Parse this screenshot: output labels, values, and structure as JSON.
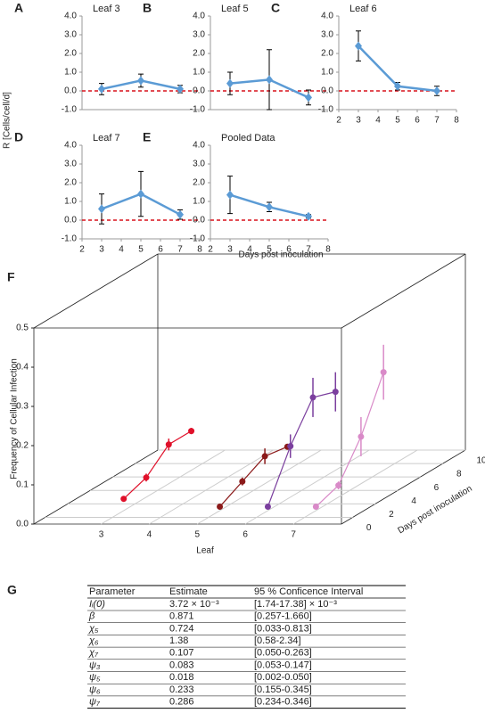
{
  "y_label": "R [Cells/cell/d]",
  "x_label": "Days post inoculation",
  "chart_data": [
    {
      "type": "line",
      "panel": "A",
      "title": "Leaf 3",
      "color": "#5b9bd5",
      "hline": 0,
      "hline_color": "#d9121b",
      "x": [
        3,
        5,
        7
      ],
      "values": [
        0.1,
        0.55,
        0.1
      ],
      "errors": [
        0.3,
        0.35,
        0.2
      ],
      "xlim": [
        2,
        8
      ],
      "ylim": [
        -1,
        4
      ],
      "yticks": [
        {
          "value": -1,
          "label": "-1.0"
        },
        {
          "value": 0,
          "label": "0.0"
        },
        {
          "value": 1,
          "label": "1.0"
        },
        {
          "value": 2,
          "label": "2.0"
        },
        {
          "value": 3,
          "label": "3.0"
        },
        {
          "value": 4,
          "label": "4.0"
        }
      ]
    },
    {
      "type": "line",
      "panel": "B",
      "title": "Leaf 5",
      "color": "#5b9bd5",
      "hline": 0,
      "hline_color": "#d9121b",
      "x": [
        3,
        5,
        7
      ],
      "values": [
        0.4,
        0.6,
        -0.35
      ],
      "errors": [
        0.6,
        1.6,
        0.4
      ],
      "xlim": [
        2,
        8
      ],
      "ylim": [
        -1,
        4
      ],
      "yticks": [
        {
          "value": -1,
          "label": "-1.0"
        },
        {
          "value": 0,
          "label": "0.0"
        },
        {
          "value": 1,
          "label": "1.0"
        },
        {
          "value": 2,
          "label": "2.0"
        },
        {
          "value": 3,
          "label": "3.0"
        },
        {
          "value": 4,
          "label": "4.0"
        }
      ]
    },
    {
      "type": "line",
      "panel": "C",
      "title": "Leaf 6",
      "color": "#5b9bd5",
      "hline": 0,
      "hline_color": "#d9121b",
      "x": [
        3,
        5,
        7
      ],
      "values": [
        2.4,
        0.25,
        0.0
      ],
      "errors": [
        0.8,
        0.2,
        0.25
      ],
      "xlim": [
        2,
        8
      ],
      "ylim": [
        -1,
        4
      ],
      "xticks": [
        2,
        3,
        4,
        5,
        6,
        7,
        8
      ],
      "yticks": [
        {
          "value": -1,
          "label": "-1.0"
        },
        {
          "value": 0,
          "label": "0.0"
        },
        {
          "value": 1,
          "label": "1.0"
        },
        {
          "value": 2,
          "label": "2.0"
        },
        {
          "value": 3,
          "label": "3.0"
        },
        {
          "value": 4,
          "label": "4.0"
        }
      ]
    },
    {
      "type": "line",
      "panel": "D",
      "title": "Leaf 7",
      "color": "#5b9bd5",
      "hline": 0,
      "hline_color": "#d9121b",
      "x": [
        3,
        5,
        7
      ],
      "values": [
        0.6,
        1.4,
        0.3
      ],
      "errors": [
        0.8,
        1.2,
        0.25
      ],
      "xlim": [
        2,
        8
      ],
      "ylim": [
        -1,
        4
      ],
      "xticks": [
        2,
        3,
        4,
        5,
        6,
        7,
        8
      ],
      "yticks": [
        {
          "value": -1,
          "label": "-1.0"
        },
        {
          "value": 0,
          "label": "0.0"
        },
        {
          "value": 1,
          "label": "1.0"
        },
        {
          "value": 2,
          "label": "2.0"
        },
        {
          "value": 3,
          "label": "3.0"
        },
        {
          "value": 4,
          "label": "4.0"
        }
      ]
    },
    {
      "type": "line",
      "panel": "E",
      "title": "Pooled Data",
      "color": "#5b9bd5",
      "hline": 0,
      "hline_color": "#d9121b",
      "x": [
        3,
        5,
        7
      ],
      "values": [
        1.35,
        0.7,
        0.2
      ],
      "errors": [
        1.0,
        0.25,
        0.1
      ],
      "xlim": [
        2,
        8
      ],
      "ylim": [
        -1,
        4
      ],
      "xticks": [
        2,
        3,
        4,
        5,
        6,
        7,
        8
      ],
      "yticks": [
        {
          "value": -1,
          "label": "-1.0"
        },
        {
          "value": 0,
          "label": "0.0"
        },
        {
          "value": 1,
          "label": "1.0"
        },
        {
          "value": 2,
          "label": "2.0"
        },
        {
          "value": 3,
          "label": "3.0"
        },
        {
          "value": 4,
          "label": "4.0"
        }
      ]
    },
    {
      "type": "scatter3d",
      "panel": "F",
      "x_label": "Leaf",
      "y_label": "Days post inoculation",
      "z_label": "Frequency of Cellular Infection",
      "xlim": [
        1.6,
        8
      ],
      "xticks": [
        3,
        4,
        5,
        6,
        7
      ],
      "ylim": [
        -1,
        10
      ],
      "yticks": [
        0,
        2,
        4,
        6,
        8,
        10
      ],
      "zlim": [
        0,
        0.5
      ],
      "zticks": [
        {
          "value": 0,
          "label": "0.0"
        },
        {
          "value": 0.1,
          "label": "0.1"
        },
        {
          "value": 0.2,
          "label": "0.2"
        },
        {
          "value": 0.3,
          "label": "0.3"
        },
        {
          "value": 0.4,
          "label": "0.4"
        },
        {
          "value": 0.5,
          "label": "0.5"
        }
      ],
      "series": [
        {
          "leaf": 3,
          "color": "#e0102a",
          "days": [
            1,
            3,
            5,
            7
          ],
          "values": [
            0.03,
            0.05,
            0.1,
            0.1
          ],
          "errors": [
            0,
            0.01,
            0.015,
            0.008
          ]
        },
        {
          "leaf": 5,
          "color": "#8b1a1a",
          "days": [
            1,
            3,
            5,
            7
          ],
          "values": [
            0.01,
            0.04,
            0.07,
            0.06
          ],
          "errors": [
            0,
            0.01,
            0.02,
            0.006
          ]
        },
        {
          "leaf": 6,
          "color": "#7b3f9e",
          "days": [
            1,
            3,
            5,
            7
          ],
          "values": [
            0.01,
            0.13,
            0.22,
            0.2
          ],
          "errors": [
            0,
            0.03,
            0.05,
            0.05
          ]
        },
        {
          "leaf": 7,
          "color": "#d98ac8",
          "days": [
            1,
            3,
            5,
            7
          ],
          "values": [
            0.01,
            0.03,
            0.12,
            0.25
          ],
          "errors": [
            0,
            0.01,
            0.05,
            0.07
          ]
        }
      ]
    }
  ],
  "table": {
    "panel": "G",
    "columns": [
      "Parameter",
      "Estimate",
      "95 % Conficence Interval"
    ],
    "rows": [
      [
        "Iᵢ(0)",
        "3.72 × 10⁻³",
        "[1.74-17.38] × 10⁻³"
      ],
      [
        "β",
        "0.871",
        "[0.257-1.660]"
      ],
      [
        "χ₅",
        "0.724",
        "[0.033-0.813]"
      ],
      [
        "χ₆",
        "1.38",
        "[0.58-2.34]"
      ],
      [
        "χ₇",
        "0.107",
        "[0.050-0.263]"
      ],
      [
        "ψ₃",
        "0.083",
        "[0.053-0.147]"
      ],
      [
        "ψ₅",
        "0.018",
        "[0.002-0.050]"
      ],
      [
        "ψ₆",
        "0.233",
        "[0.155-0.345]"
      ],
      [
        "ψ₇",
        "0.286",
        "[0.234-0.346]"
      ]
    ]
  }
}
